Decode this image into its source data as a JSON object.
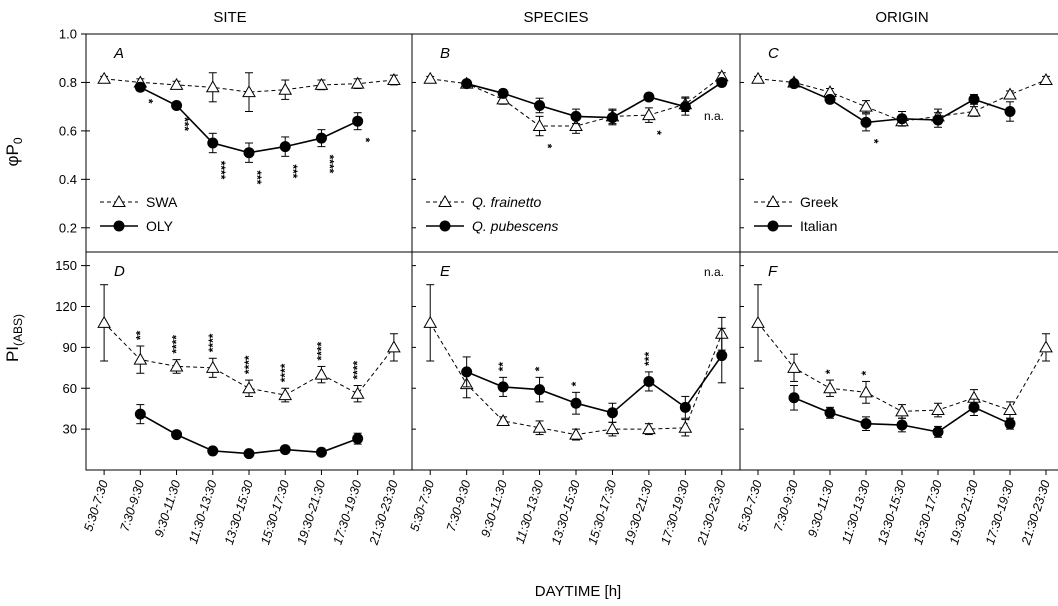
{
  "column_titles": [
    "SITE",
    "SPECIES",
    "ORIGIN"
  ],
  "xlabel": "DAYTIME [h]",
  "ylabel_top": {
    "main": "φP",
    "sub": "0"
  },
  "ylabel_bottom": {
    "main": "PI",
    "sub": "(ABS)"
  },
  "chart_data": {
    "type": "line",
    "categories": [
      "5:30-7:30",
      "7:30-9:30",
      "9:30-11:30",
      "11:30-13:30",
      "13:30-15:30",
      "15:30-17:30",
      "19:30-21:30",
      "17:30-19:30",
      "21:30-23:30"
    ],
    "rows": [
      {
        "ylim": [
          0.1,
          1.0
        ],
        "yticks": [
          0.2,
          0.4,
          0.6,
          0.8,
          1.0
        ],
        "tick_labels": [
          "0.2",
          "0.4",
          "0.6",
          "0.8",
          "1.0"
        ]
      },
      {
        "ylim": [
          0,
          160
        ],
        "yticks": [
          30,
          60,
          90,
          120,
          150
        ],
        "tick_labels": [
          "30",
          "60",
          "90",
          "120",
          "150"
        ]
      }
    ],
    "panels": [
      {
        "letter": "A",
        "row": 0,
        "col": 0,
        "legend": [
          "SWA",
          "OLY"
        ],
        "series": [
          {
            "name": "SWA",
            "marker": "open-triangle",
            "dash": true,
            "values": [
              0.815,
              0.8,
              0.79,
              0.78,
              0.76,
              0.77,
              0.79,
              0.795,
              0.81
            ],
            "errors": [
              0.01,
              0.015,
              0.015,
              0.06,
              0.08,
              0.04,
              0.02,
              0.02,
              0.02
            ]
          },
          {
            "name": "OLY",
            "marker": "filled-circle",
            "dash": false,
            "values": [
              null,
              0.78,
              0.705,
              0.55,
              0.51,
              0.535,
              0.57,
              0.64,
              null
            ],
            "errors": [
              null,
              0.015,
              0.015,
              0.04,
              0.04,
              0.04,
              0.035,
              0.035,
              null
            ]
          }
        ],
        "significance": [
          "",
          "*",
          "***",
          "****",
          "***",
          "***",
          "****",
          "*",
          ""
        ],
        "sig_position": "below",
        "note": ""
      },
      {
        "letter": "B",
        "row": 0,
        "col": 1,
        "legend": [
          "Q. frainetto",
          "Q. pubescens"
        ],
        "series": [
          {
            "name": "Q. frainetto",
            "marker": "open-triangle",
            "dash": true,
            "values": [
              0.815,
              0.795,
              0.73,
              0.62,
              0.62,
              0.66,
              0.665,
              0.71,
              0.825
            ],
            "errors": [
              0.01,
              0.01,
              0.02,
              0.04,
              0.03,
              0.03,
              0.03,
              0.03,
              0.015
            ]
          },
          {
            "name": "Q. pubescens",
            "marker": "filled-circle",
            "dash": false,
            "values": [
              null,
              0.795,
              0.755,
              0.705,
              0.66,
              0.655,
              0.74,
              0.7,
              0.8
            ],
            "errors": [
              null,
              0.01,
              0.015,
              0.03,
              0.03,
              0.03,
              0.015,
              0.035,
              0.015
            ]
          }
        ],
        "significance": [
          "",
          "",
          "",
          "*",
          "",
          "",
          "*",
          "",
          ""
        ],
        "sig_position": "below",
        "note": "n.a."
      },
      {
        "letter": "C",
        "row": 0,
        "col": 2,
        "legend": [
          "Greek",
          "Italian"
        ],
        "series": [
          {
            "name": "Greek",
            "marker": "open-triangle",
            "dash": true,
            "values": [
              0.815,
              0.8,
              0.76,
              0.7,
              0.64,
              0.66,
              0.68,
              0.75,
              0.81
            ],
            "errors": [
              0.01,
              0.01,
              0.015,
              0.025,
              0.02,
              0.03,
              0.02,
              0.015,
              0.015
            ]
          },
          {
            "name": "Italian",
            "marker": "filled-circle",
            "dash": false,
            "values": [
              null,
              0.795,
              0.73,
              0.635,
              0.65,
              0.645,
              0.73,
              0.68,
              null
            ],
            "errors": [
              null,
              0.01,
              0.015,
              0.035,
              0.03,
              0.03,
              0.02,
              0.04,
              null
            ]
          }
        ],
        "significance": [
          "",
          "",
          "",
          "*",
          "",
          "",
          "",
          "",
          ""
        ],
        "sig_position": "below",
        "note": ""
      },
      {
        "letter": "D",
        "row": 1,
        "col": 0,
        "legend": [],
        "series": [
          {
            "name": "SWA",
            "marker": "open-triangle",
            "dash": true,
            "values": [
              108,
              81,
              76,
              75,
              60,
              55,
              70,
              56,
              90
            ],
            "errors": [
              28,
              10,
              5,
              7,
              6,
              5,
              6,
              6,
              10
            ]
          },
          {
            "name": "OLY",
            "marker": "filled-circle",
            "dash": false,
            "values": [
              null,
              41,
              26,
              14,
              12,
              15,
              13,
              23,
              null
            ],
            "errors": [
              null,
              7,
              2,
              2,
              2,
              2,
              2,
              4,
              null
            ]
          }
        ],
        "significance": [
          "",
          "**",
          "****",
          "****",
          "****",
          "****",
          "****",
          "****",
          ""
        ],
        "sig_position": "above",
        "note": ""
      },
      {
        "letter": "E",
        "row": 1,
        "col": 1,
        "legend": [],
        "series": [
          {
            "name": "Q. frainetto",
            "marker": "open-triangle",
            "dash": true,
            "values": [
              108,
              63,
              36,
              31,
              26,
              30,
              30,
              31,
              100
            ],
            "errors": [
              28,
              10,
              3,
              5,
              4,
              5,
              4,
              6,
              12
            ]
          },
          {
            "name": "Q. pubescens",
            "marker": "filled-circle",
            "dash": false,
            "values": [
              null,
              72,
              61,
              59,
              49,
              42,
              65,
              46,
              84
            ],
            "errors": [
              null,
              11,
              7,
              9,
              8,
              7,
              7,
              8,
              20
            ]
          }
        ],
        "significance": [
          "",
          "",
          "**",
          "*",
          "*",
          "",
          "***",
          "",
          ""
        ],
        "sig_position": "above",
        "note": "n.a."
      },
      {
        "letter": "F",
        "row": 1,
        "col": 2,
        "legend": [],
        "series": [
          {
            "name": "Greek",
            "marker": "open-triangle",
            "dash": true,
            "values": [
              108,
              75,
              60,
              57,
              43,
              44,
              53,
              44,
              90
            ],
            "errors": [
              28,
              10,
              6,
              8,
              5,
              5,
              6,
              6,
              10
            ]
          },
          {
            "name": "Italian",
            "marker": "filled-circle",
            "dash": false,
            "values": [
              null,
              53,
              42,
              34,
              33,
              28,
              46,
              34,
              null
            ],
            "errors": [
              null,
              9,
              4,
              5,
              5,
              4,
              6,
              4,
              null
            ]
          }
        ],
        "significance": [
          "",
          "",
          "*",
          "*",
          "",
          "",
          "",
          "",
          ""
        ],
        "sig_position": "above",
        "note": ""
      }
    ]
  }
}
